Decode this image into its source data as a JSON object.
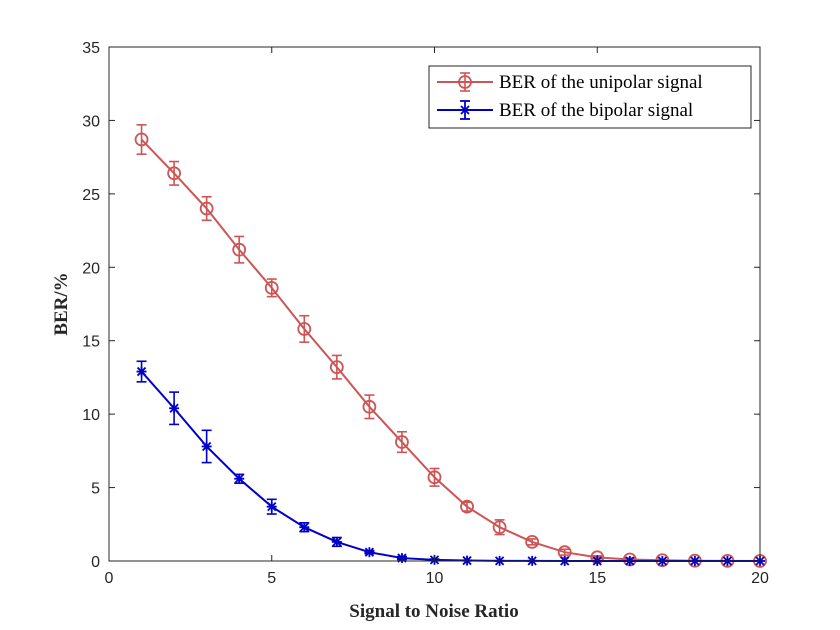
{
  "colors": {
    "unipolar": "#cd5555",
    "bipolar": "#0000c8",
    "axis": "#262626"
  },
  "chart_data": {
    "type": "line",
    "xlabel": "Signal to Noise Ratio",
    "ylabel": "BER/%",
    "xlim": [
      0,
      20
    ],
    "ylim": [
      0,
      35
    ],
    "xticks": [
      0,
      5,
      10,
      15,
      20
    ],
    "yticks": [
      0,
      5,
      10,
      15,
      20,
      25,
      30,
      35
    ],
    "grid": false,
    "legend_position": "top-right",
    "x": [
      1,
      2,
      3,
      4,
      5,
      6,
      7,
      8,
      9,
      10,
      11,
      12,
      13,
      14,
      15,
      16,
      17,
      18,
      19,
      20
    ],
    "series": [
      {
        "name": "BER of the unipolar signal",
        "marker": "circle",
        "color": "#cd5555",
        "values": [
          28.7,
          26.4,
          24.0,
          21.2,
          18.6,
          15.8,
          13.2,
          10.5,
          8.1,
          5.7,
          3.7,
          2.3,
          1.3,
          0.6,
          0.25,
          0.1,
          0.05,
          0.02,
          0.01,
          0.0
        ],
        "error": [
          1.0,
          0.8,
          0.8,
          0.9,
          0.6,
          0.9,
          0.8,
          0.8,
          0.7,
          0.6,
          0.3,
          0.5,
          0.2,
          0.2,
          0.1,
          0.1,
          0.05,
          0.02,
          0.01,
          0.0
        ]
      },
      {
        "name": "BER of the bipolar signal",
        "marker": "asterisk",
        "color": "#0000c8",
        "values": [
          12.9,
          10.4,
          7.8,
          5.6,
          3.7,
          2.3,
          1.3,
          0.6,
          0.2,
          0.08,
          0.03,
          0.01,
          0.01,
          0.0,
          0.0,
          0.0,
          0.0,
          0.0,
          0.0,
          0.0
        ],
        "error": [
          0.7,
          1.1,
          1.1,
          0.3,
          0.5,
          0.3,
          0.3,
          0.1,
          0.1,
          0.05,
          0.02,
          0.01,
          0.01,
          0.0,
          0.0,
          0.0,
          0.0,
          0.0,
          0.0,
          0.0
        ]
      }
    ]
  }
}
